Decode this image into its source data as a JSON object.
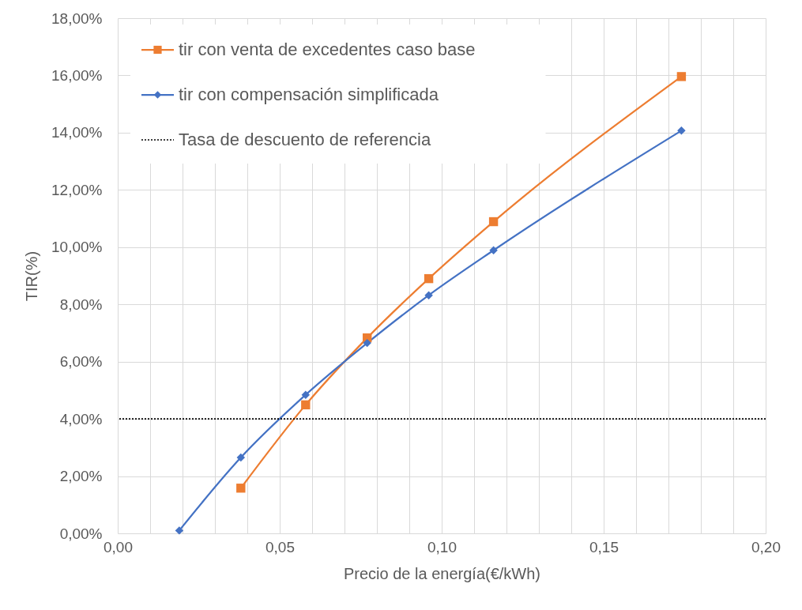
{
  "chart_data": {
    "type": "line",
    "xlabel": "Precio de la energía(€/kWh)",
    "ylabel": "TIR(%)",
    "series": [
      {
        "name": "tir con venta de excedentes caso base",
        "color": "#ed7d31",
        "marker": "square",
        "x": [
          0.038,
          0.058,
          0.077,
          0.096,
          0.116,
          0.174
        ],
        "values": [
          1.58,
          4.49,
          6.83,
          8.9,
          10.89,
          15.96
        ]
      },
      {
        "name": "tir con compensación simplificada",
        "color": "#4472c4",
        "marker": "diamond",
        "x": [
          0.019,
          0.038,
          0.058,
          0.077,
          0.096,
          0.116,
          0.174
        ],
        "values": [
          0.1,
          2.65,
          4.84,
          6.65,
          8.32,
          9.89,
          14.07
        ]
      }
    ],
    "xlim": [
      0,
      0.2
    ],
    "xticks": [
      {
        "value": 0,
        "label": "0,00"
      },
      {
        "value": 0.01,
        "label": null
      },
      {
        "value": 0.02,
        "label": null
      },
      {
        "value": 0.03,
        "label": null
      },
      {
        "value": 0.04,
        "label": null
      },
      {
        "value": 0.05,
        "label": "0,05"
      },
      {
        "value": 0.06,
        "label": null
      },
      {
        "value": 0.07,
        "label": null
      },
      {
        "value": 0.08,
        "label": null
      },
      {
        "value": 0.09,
        "label": null
      },
      {
        "value": 0.1,
        "label": "0,10"
      },
      {
        "value": 0.11,
        "label": null
      },
      {
        "value": 0.12,
        "label": null
      },
      {
        "value": 0.13,
        "label": null
      },
      {
        "value": 0.14,
        "label": null
      },
      {
        "value": 0.15,
        "label": "0,15"
      },
      {
        "value": 0.16,
        "label": null
      },
      {
        "value": 0.17,
        "label": null
      },
      {
        "value": 0.18,
        "label": null
      },
      {
        "value": 0.19,
        "label": null
      },
      {
        "value": 0.2,
        "label": "0,20"
      }
    ],
    "ylim": [
      0,
      18
    ],
    "yticks": [
      {
        "value": 0,
        "label": "0,00%"
      },
      {
        "value": 2,
        "label": "2,00%"
      },
      {
        "value": 4,
        "label": "4,00%"
      },
      {
        "value": 6,
        "label": "6,00%"
      },
      {
        "value": 8,
        "label": "8,00%"
      },
      {
        "value": 10,
        "label": "10,00%"
      },
      {
        "value": 12,
        "label": "12,00%"
      },
      {
        "value": 14,
        "label": "14,00%"
      },
      {
        "value": 16,
        "label": "16,00%"
      },
      {
        "value": 18,
        "label": "18,00%"
      }
    ],
    "ref_lines": [
      {
        "axis": "y",
        "value": 4,
        "label": "Tasa de descuento de referencia",
        "color": "#000000",
        "line_style": "dotted"
      }
    ],
    "grid": true,
    "legend": "top left",
    "line_style": "solid"
  }
}
